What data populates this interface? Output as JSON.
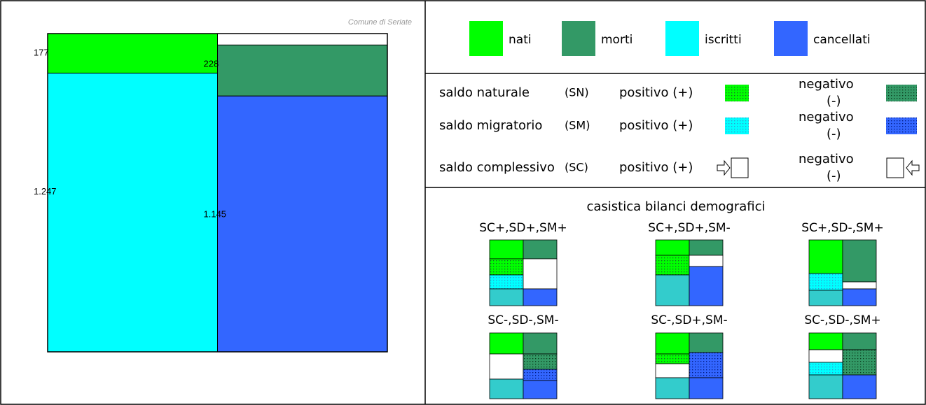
{
  "chart_data": {
    "type": "bar",
    "source": "Comune di Seriate",
    "series": [
      {
        "name": "nati",
        "color": "#00ff00",
        "values": [
          177
        ]
      },
      {
        "name": "morti",
        "color": "#339966",
        "values": [
          228
        ]
      },
      {
        "name": "iscritti",
        "color": "#00ffff",
        "values": [
          1247
        ],
        "value_labels": [
          "1.247"
        ]
      },
      {
        "name": "cancellati",
        "color": "#3366ff",
        "values": [
          1145
        ],
        "value_labels": [
          "1.145"
        ]
      }
    ]
  },
  "legend_key": {
    "rows": [
      {
        "label": "saldo naturale",
        "abbr": "(SN)",
        "positive": "positivo (+)",
        "negative": "negativo (-)"
      },
      {
        "label": "saldo migratorio",
        "abbr": "(SM)",
        "positive": "positivo (+)",
        "negative": "negativo (-)"
      },
      {
        "label": "saldo complessivo",
        "abbr": "(SC)",
        "positive": "positivo (+)",
        "negative": "negativo (-)"
      }
    ]
  },
  "cases": {
    "title": "casistica bilanci demografici",
    "labels": [
      "SC+,SD+,SM+",
      "SC+,SD+,SM-",
      "SC+,SD-,SM+",
      "SC-,SD-,SM-",
      "SC-,SD+,SM-",
      "SC-,SD-,SM+"
    ]
  }
}
